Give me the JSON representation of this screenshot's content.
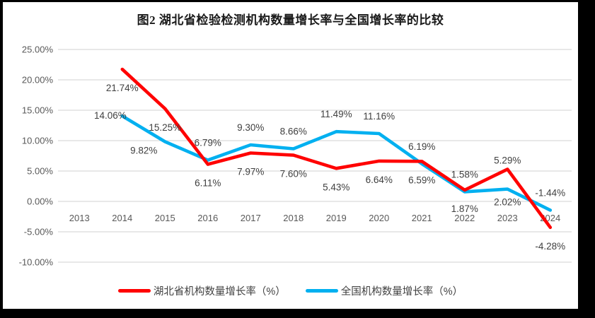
{
  "title": "图2  湖北省检验检测机构数量增长率与全国增长率的比较",
  "colors": {
    "hubei_line": "#FF0000",
    "national_line": "#00B0F0",
    "gridline": "#D9D9D9",
    "axis_text": "#595959",
    "data_label_text": "#3F3F3F",
    "frame": "#000000",
    "background": "#FFFFFF"
  },
  "chart_data": {
    "type": "line",
    "title": "图2  湖北省检验检测机构数量增长率与全国增长率的比较",
    "xlabel": "",
    "ylabel": "",
    "ylim": [
      -10,
      25
    ],
    "ytick_step": 5,
    "grid": true,
    "legend_position": "bottom",
    "categories": [
      "2013",
      "2014",
      "2015",
      "2016",
      "2017",
      "2018",
      "2019",
      "2020",
      "2021",
      "2022",
      "2023",
      "2024"
    ],
    "ytick_labels": [
      "25.00%",
      "20.00%",
      "15.00%",
      "10.00%",
      "5.00%",
      "0.00%",
      "-5.00%",
      "-10.00%"
    ],
    "series": [
      {
        "name": "湖北省机构数量增长率（%）",
        "color": "#FF0000",
        "values": [
          null,
          21.74,
          15.25,
          6.11,
          7.97,
          7.6,
          5.43,
          6.64,
          6.59,
          1.87,
          5.29,
          -4.28
        ],
        "labels": [
          "",
          "21.74%",
          "15.25%",
          "6.11%",
          "7.97%",
          "7.60%",
          "5.43%",
          "6.64%",
          "6.59%",
          "1.87%",
          "5.29%",
          "-4.28%"
        ],
        "label_pos": [
          "",
          "below",
          "below",
          "below",
          "below",
          "below",
          "below",
          "below",
          "below",
          "below",
          "above",
          "below"
        ],
        "label_adjust": {
          "10": [
            0,
            12
          ]
        }
      },
      {
        "name": "全国机构数量增长率（%）",
        "color": "#00B0F0",
        "values": [
          null,
          14.06,
          9.82,
          6.79,
          9.3,
          8.66,
          11.49,
          11.16,
          6.19,
          1.58,
          2.02,
          -1.44
        ],
        "labels": [
          "",
          "14.06%",
          "9.82%",
          "6.79%",
          "9.30%",
          "8.66%",
          "11.49%",
          "11.16%",
          "6.19%",
          "1.58%",
          "2.02%",
          "-1.44%"
        ],
        "label_pos": [
          "",
          "left",
          "below",
          "above",
          "above",
          "above",
          "above",
          "above",
          "above",
          "above",
          "below",
          "above"
        ],
        "label_adjust": {
          "2": [
            -30,
            -14
          ],
          "10": [
            0,
            -8
          ]
        }
      }
    ]
  },
  "legend": {
    "items": [
      {
        "label": "湖北省机构数量增长率（%）",
        "color": "#FF0000"
      },
      {
        "label": "全国机构数量增长率（%）",
        "color": "#00B0F0"
      }
    ]
  }
}
